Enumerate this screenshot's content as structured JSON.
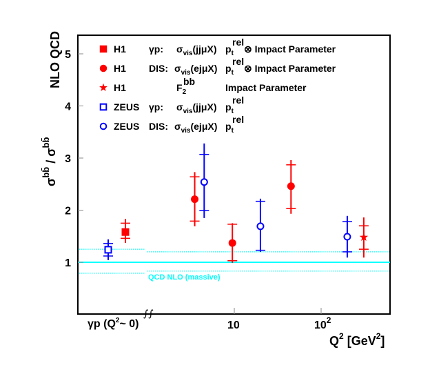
{
  "chart_data": {
    "type": "scatter",
    "title": "",
    "ylabel": {
      "main": "σ",
      "main_sup": "bb̄",
      "sep": " / ",
      "den": "σ",
      "den_sup": "bb̄",
      "den_sub": "NLO QCD"
    },
    "xlabel": {
      "main": "Q",
      "sup": "2",
      "unit_open": " [GeV",
      "unit_sup": "2",
      "unit_close": "]"
    },
    "ylim": [
      0,
      5.37
    ],
    "x_scale": "log (with separate γp region at Q²≈0, axis break)",
    "xlim_log_region": [
      3.0,
      800
    ],
    "y_ticks": [
      "1",
      "2",
      "3",
      "4",
      "5"
    ],
    "x_ticks": [
      {
        "label": "10",
        "value": 10
      },
      {
        "label": "10",
        "sup": "2",
        "value": 100
      }
    ],
    "photoproduction_label": {
      "pre": "γp  (Q",
      "sup": "2",
      "post": "~ 0)"
    },
    "axis_break_symbol": "∫∫",
    "reference": {
      "label": "QCD NLO (massive)",
      "central": 1.0,
      "band_left": [
        0.79,
        1.25
      ],
      "band_right": [
        0.83,
        1.2
      ],
      "color": "#00ffff"
    },
    "series": [
      {
        "name": "H1 γp: σvis(jjμX) ptrel ⊗ Impact Parameter",
        "experiment": "H1",
        "marker": "filled-square",
        "color": "#ff0000",
        "points": [
          {
            "x": "γp",
            "y": 1.58,
            "stat": [
              1.46,
              1.75
            ],
            "tot": [
              1.37,
              1.83
            ]
          }
        ]
      },
      {
        "name": "H1 DIS: σvis(ejμX) ptrel ⊗ Impact Parameter",
        "experiment": "H1",
        "marker": "filled-circle",
        "color": "#ff0000",
        "points": [
          {
            "x": 3.5,
            "y": 2.21,
            "stat": [
              1.79,
              2.64
            ],
            "tot": [
              1.69,
              2.73
            ]
          },
          {
            "x": 9.5,
            "y": 1.37,
            "stat": [
              1.03,
              1.73
            ],
            "tot": [
              0.99,
              1.75
            ]
          },
          {
            "x": 45,
            "y": 2.46,
            "stat": [
              2.03,
              2.87
            ],
            "tot": [
              1.93,
              2.96
            ]
          }
        ]
      },
      {
        "name": "H1 F2bb Impact Parameter",
        "experiment": "H1",
        "marker": "star",
        "color": "#ff0000",
        "points": [
          {
            "x": 310,
            "y": 1.48,
            "stat": [
              1.25,
              1.7
            ],
            "tot": [
              1.09,
              1.86
            ]
          }
        ]
      },
      {
        "name": "ZEUS γp: σvis(jjμX) ptrel",
        "experiment": "ZEUS",
        "marker": "open-square",
        "color": "#0000ff",
        "points": [
          {
            "x": "γp",
            "y": 1.24,
            "stat": [
              1.12,
              1.36
            ],
            "tot": [
              1.04,
              1.44
            ]
          }
        ]
      },
      {
        "name": "ZEUS DIS: σvis(ejμX) ptrel",
        "experiment": "ZEUS",
        "marker": "open-circle",
        "color": "#0000ff",
        "points": [
          {
            "x": 4.5,
            "y": 2.54,
            "stat": [
              1.99,
              3.07
            ],
            "tot": [
              1.85,
              3.28
            ]
          },
          {
            "x": 20,
            "y": 1.69,
            "stat": [
              1.23,
              2.17
            ],
            "tot": [
              1.2,
              2.22
            ]
          },
          {
            "x": 200,
            "y": 1.49,
            "stat": [
              1.2,
              1.78
            ],
            "tot": [
              1.09,
              1.89
            ]
          }
        ]
      }
    ],
    "legend": {
      "position": "top-left",
      "entries": [
        {
          "marker": "filled-square",
          "color": "#ff0000",
          "exp": "H1",
          "proc": "γp:",
          "obs": "σ",
          "obs_sub": "vis",
          "obs_arg": "(jjμX)",
          "meth": "p",
          "meth_sub": "t",
          "meth_sup": "rel",
          "extra": "⊗ Impact Parameter"
        },
        {
          "marker": "filled-circle",
          "color": "#ff0000",
          "exp": "H1",
          "proc": "DIS:",
          "obs": "σ",
          "obs_sub": "vis",
          "obs_arg": "(ejμX)",
          "meth": "p",
          "meth_sub": "t",
          "meth_sup": "rel",
          "extra": "⊗ Impact Parameter"
        },
        {
          "marker": "star",
          "color": "#ff0000",
          "exp": "H1",
          "proc": "",
          "obs": "F",
          "obs_sub": "2",
          "obs_sup": "bb",
          "obs_arg": "",
          "meth": "",
          "meth_sub": "",
          "meth_sup": "",
          "extra": "Impact Parameter"
        },
        {
          "marker": "open-square",
          "color": "#0000ff",
          "exp": "ZEUS",
          "proc": "γp:",
          "obs": "σ",
          "obs_sub": "vis",
          "obs_arg": "(jjμX)",
          "meth": "p",
          "meth_sub": "t",
          "meth_sup": "rel",
          "extra": ""
        },
        {
          "marker": "open-circle",
          "color": "#0000ff",
          "exp": "ZEUS",
          "proc": "DIS:",
          "obs": "σ",
          "obs_sub": "vis",
          "obs_arg": "(ejμX)",
          "meth": "p",
          "meth_sub": "t",
          "meth_sup": "rel",
          "extra": ""
        }
      ]
    },
    "grid": false
  }
}
